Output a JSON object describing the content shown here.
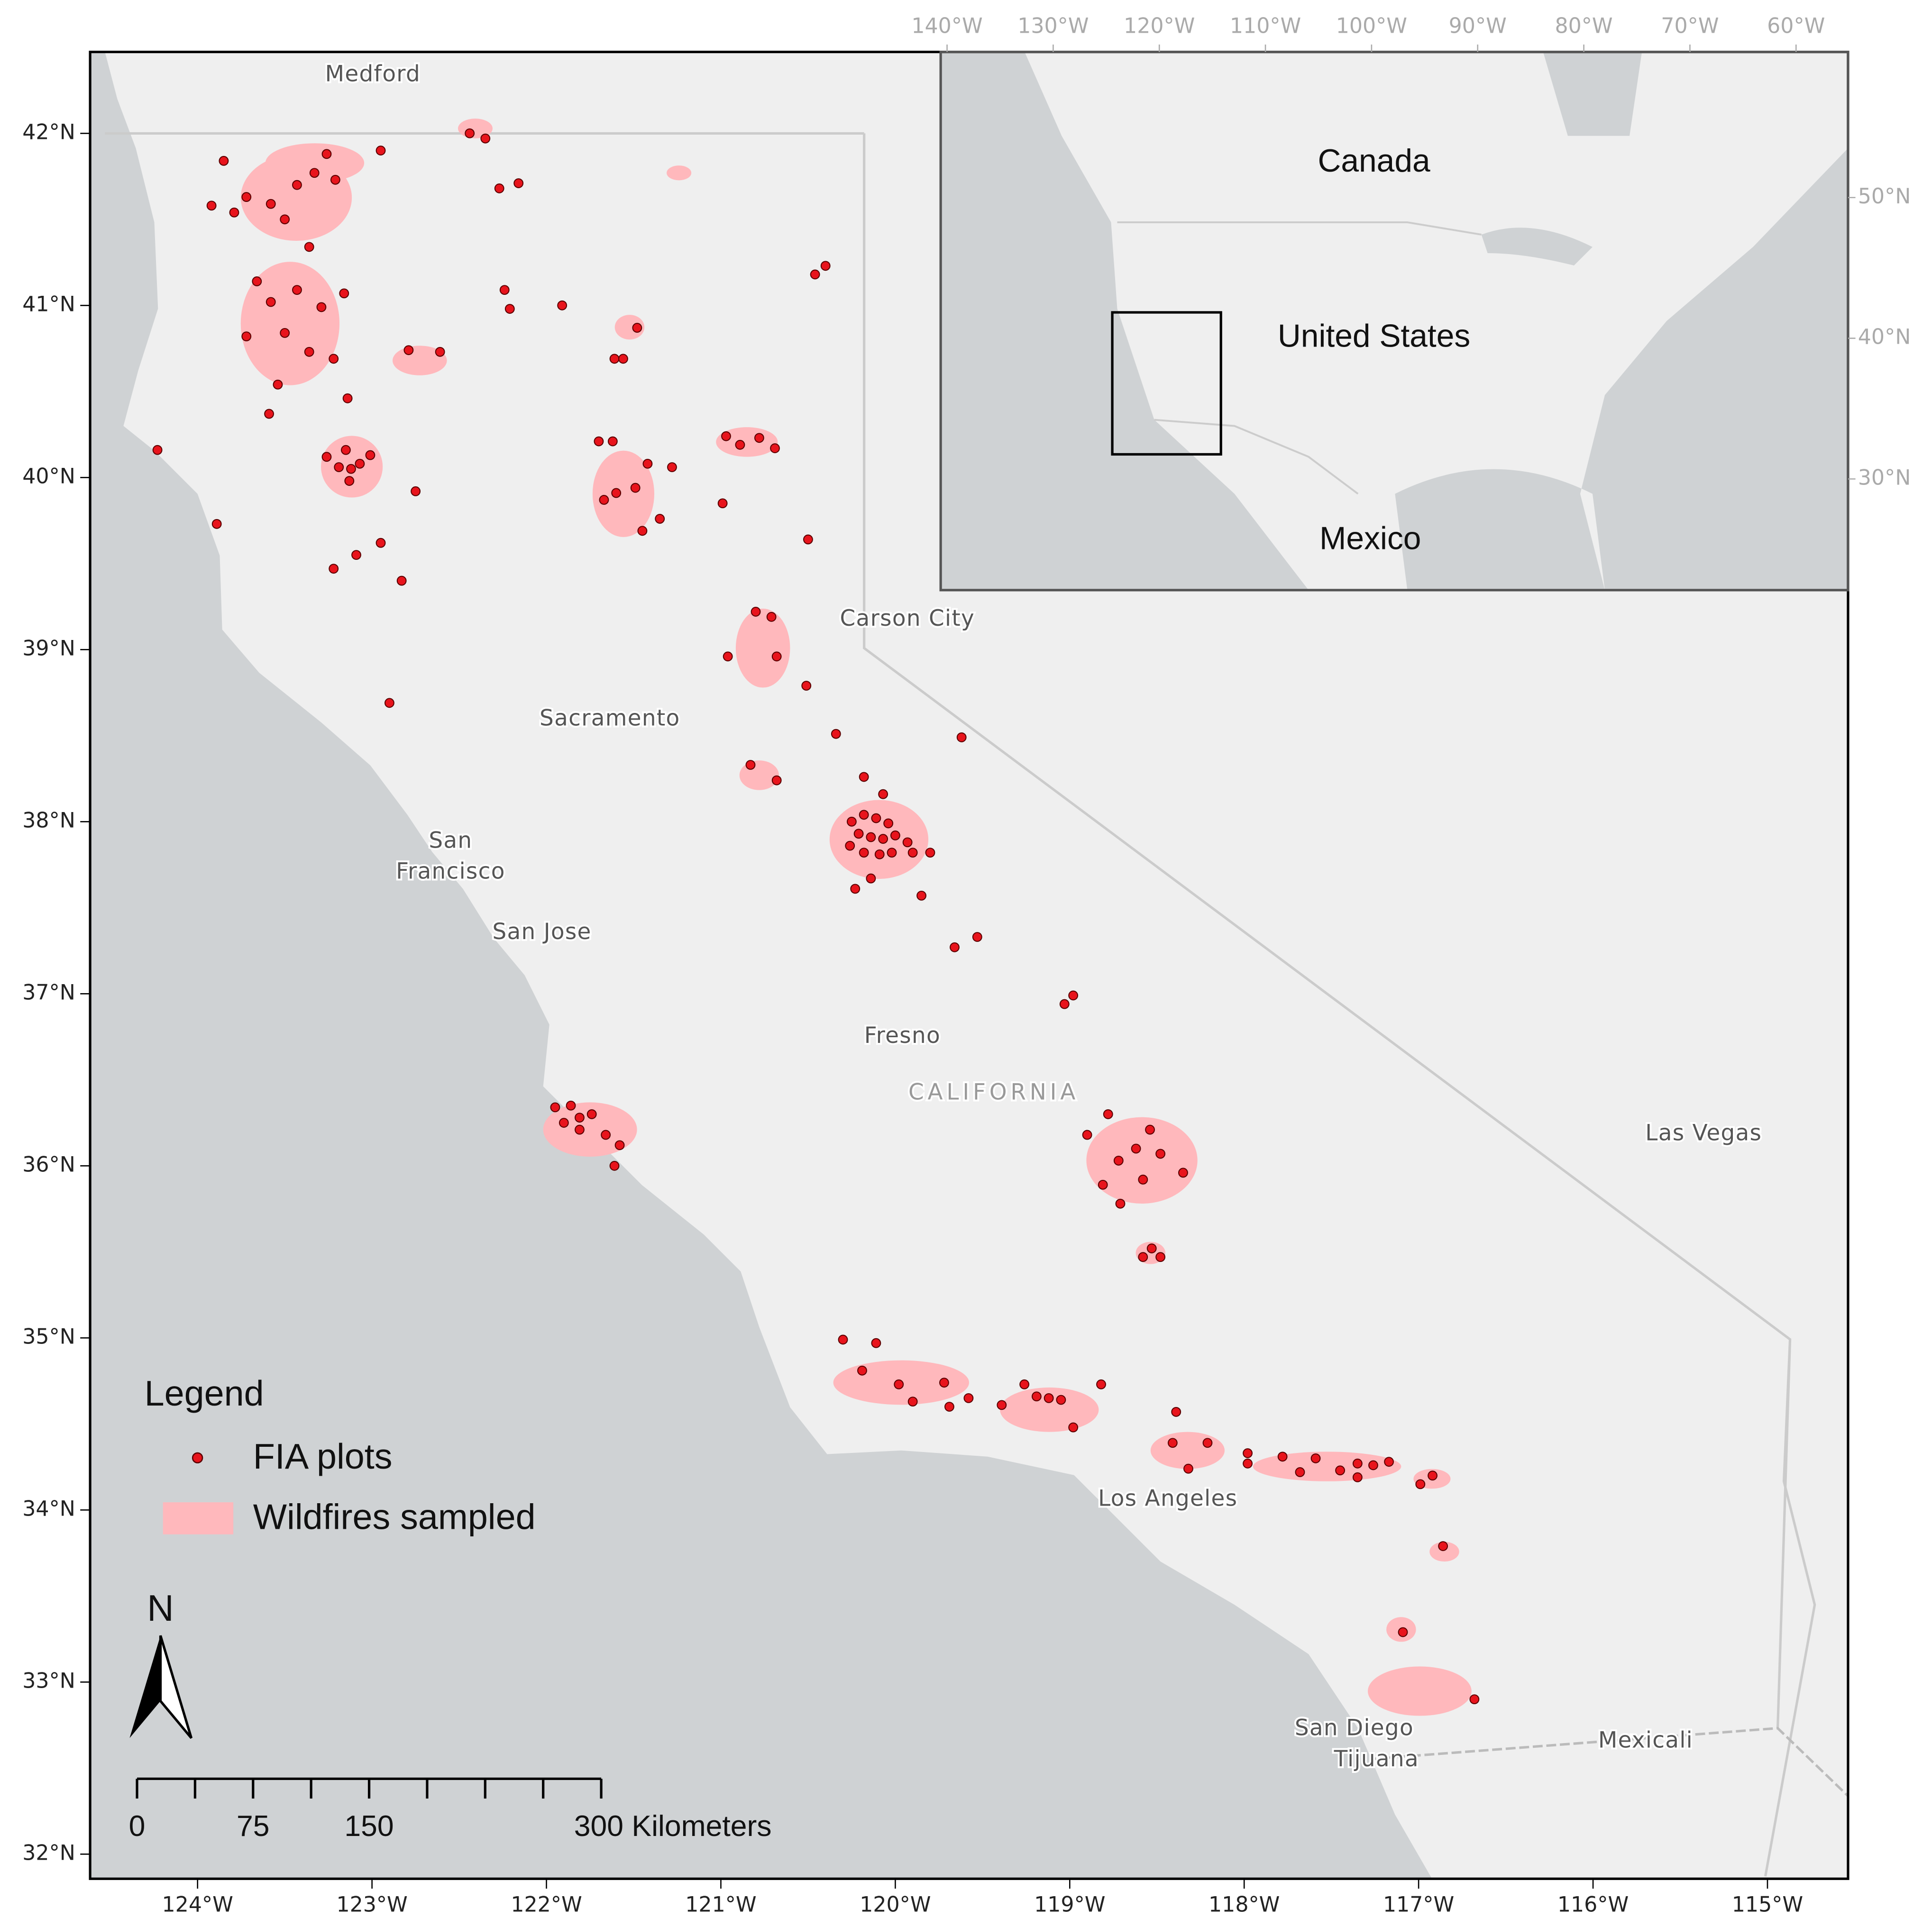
{
  "map": {
    "lon_lim": [
      -124.616,
      -114.538
    ],
    "lat_lim": [
      31.857,
      42.473
    ],
    "lon_ticks": [
      {
        "value": -124,
        "label": "124°W"
      },
      {
        "value": -123,
        "label": "123°W"
      },
      {
        "value": -122,
        "label": "122°W"
      },
      {
        "value": -121,
        "label": "121°W"
      },
      {
        "value": -120,
        "label": "120°W"
      },
      {
        "value": -119,
        "label": "119°W"
      },
      {
        "value": -118,
        "label": "118°W"
      },
      {
        "value": -117,
        "label": "117°W"
      },
      {
        "value": -116,
        "label": "116°W"
      },
      {
        "value": -115,
        "label": "115°W"
      }
    ],
    "lat_ticks": [
      {
        "value": 32,
        "label": "32°N"
      },
      {
        "value": 33,
        "label": "33°N"
      },
      {
        "value": 34,
        "label": "34°N"
      },
      {
        "value": 35,
        "label": "35°N"
      },
      {
        "value": 36,
        "label": "36°N"
      },
      {
        "value": 37,
        "label": "37°N"
      },
      {
        "value": 38,
        "label": "38°N"
      },
      {
        "value": 39,
        "label": "39°N"
      },
      {
        "value": 40,
        "label": "40°N"
      },
      {
        "value": 41,
        "label": "41°N"
      },
      {
        "value": 42,
        "label": "42°N"
      }
    ],
    "places": [
      "Medford",
      "Carson City",
      "Sacramento",
      "San",
      "Francisco",
      "San Jose",
      "Fresno",
      "CALIFORNIA",
      "Las Vegas",
      "Los Angeles",
      "San Diego",
      "Tijuana",
      "Mexicali"
    ],
    "fia_plots": [
      [
        -123.85,
        41.84
      ],
      [
        -123.92,
        41.58
      ],
      [
        -123.79,
        41.54
      ],
      [
        -123.72,
        41.63
      ],
      [
        -123.58,
        41.59
      ],
      [
        -123.5,
        41.5
      ],
      [
        -123.43,
        41.7
      ],
      [
        -123.33,
        41.77
      ],
      [
        -123.26,
        41.88
      ],
      [
        -123.21,
        41.73
      ],
      [
        -123.36,
        41.34
      ],
      [
        -123.66,
        41.14
      ],
      [
        -123.58,
        41.02
      ],
      [
        -123.43,
        41.09
      ],
      [
        -123.72,
        40.82
      ],
      [
        -123.5,
        40.84
      ],
      [
        -123.36,
        40.73
      ],
      [
        -123.22,
        40.69
      ],
      [
        -123.29,
        40.99
      ],
      [
        -123.16,
        41.07
      ],
      [
        -123.54,
        40.54
      ],
      [
        -123.59,
        40.37
      ],
      [
        -123.14,
        40.46
      ],
      [
        -122.95,
        41.9
      ],
      [
        -122.79,
        40.74
      ],
      [
        -122.61,
        40.73
      ],
      [
        -123.26,
        40.12
      ],
      [
        -123.15,
        40.16
      ],
      [
        -123.07,
        40.08
      ],
      [
        -123.01,
        40.13
      ],
      [
        -123.12,
        40.05
      ],
      [
        -123.19,
        40.06
      ],
      [
        -123.13,
        39.98
      ],
      [
        -124.23,
        40.16
      ],
      [
        -123.89,
        39.73
      ],
      [
        -123.22,
        39.47
      ],
      [
        -123.09,
        39.55
      ],
      [
        -122.95,
        39.62
      ],
      [
        -122.75,
        39.92
      ],
      [
        -122.83,
        39.4
      ],
      [
        -122.9,
        38.69
      ],
      [
        -122.44,
        42.0
      ],
      [
        -122.35,
        41.97
      ],
      [
        -122.27,
        41.68
      ],
      [
        -122.16,
        41.71
      ],
      [
        -122.24,
        41.09
      ],
      [
        -122.21,
        40.98
      ],
      [
        -121.91,
        41.0
      ],
      [
        -121.61,
        40.69
      ],
      [
        -121.56,
        40.69
      ],
      [
        -121.48,
        40.87
      ],
      [
        -121.7,
        40.21
      ],
      [
        -121.62,
        40.21
      ],
      [
        -121.67,
        39.87
      ],
      [
        -121.6,
        39.91
      ],
      [
        -121.49,
        39.94
      ],
      [
        -121.42,
        40.08
      ],
      [
        -121.28,
        40.06
      ],
      [
        -121.45,
        39.69
      ],
      [
        -121.35,
        39.76
      ],
      [
        -120.97,
        40.24
      ],
      [
        -120.89,
        40.19
      ],
      [
        -120.78,
        40.23
      ],
      [
        -120.69,
        40.17
      ],
      [
        -120.99,
        39.85
      ],
      [
        -120.5,
        39.64
      ],
      [
        -120.4,
        41.23
      ],
      [
        -120.46,
        41.18
      ],
      [
        -120.8,
        39.22
      ],
      [
        -120.71,
        39.19
      ],
      [
        -120.96,
        38.96
      ],
      [
        -120.68,
        38.96
      ],
      [
        -120.51,
        38.79
      ],
      [
        -120.34,
        38.51
      ],
      [
        -120.83,
        38.33
      ],
      [
        -120.68,
        38.24
      ],
      [
        -119.62,
        38.49
      ],
      [
        -120.25,
        38.0
      ],
      [
        -120.18,
        38.04
      ],
      [
        -120.11,
        38.02
      ],
      [
        -120.04,
        37.99
      ],
      [
        -120.21,
        37.93
      ],
      [
        -120.14,
        37.91
      ],
      [
        -120.07,
        37.9
      ],
      [
        -120.0,
        37.92
      ],
      [
        -119.93,
        37.88
      ],
      [
        -120.26,
        37.86
      ],
      [
        -120.18,
        37.82
      ],
      [
        -120.09,
        37.81
      ],
      [
        -120.02,
        37.82
      ],
      [
        -119.9,
        37.82
      ],
      [
        -120.18,
        38.26
      ],
      [
        -120.07,
        38.16
      ],
      [
        -119.8,
        37.82
      ],
      [
        -120.23,
        37.61
      ],
      [
        -120.14,
        37.67
      ],
      [
        -119.85,
        37.57
      ],
      [
        -119.66,
        37.27
      ],
      [
        -119.53,
        37.33
      ],
      [
        -119.03,
        36.94
      ],
      [
        -118.98,
        36.99
      ],
      [
        -121.95,
        36.34
      ],
      [
        -121.86,
        36.35
      ],
      [
        -121.81,
        36.28
      ],
      [
        -121.74,
        36.3
      ],
      [
        -121.9,
        36.25
      ],
      [
        -121.81,
        36.21
      ],
      [
        -121.66,
        36.18
      ],
      [
        -121.58,
        36.12
      ],
      [
        -121.61,
        36.0
      ],
      [
        -118.78,
        36.3
      ],
      [
        -118.9,
        36.18
      ],
      [
        -118.54,
        36.21
      ],
      [
        -118.62,
        36.1
      ],
      [
        -118.72,
        36.03
      ],
      [
        -118.48,
        36.07
      ],
      [
        -118.35,
        35.96
      ],
      [
        -118.58,
        35.92
      ],
      [
        -118.81,
        35.89
      ],
      [
        -118.71,
        35.78
      ],
      [
        -118.58,
        35.47
      ],
      [
        -118.53,
        35.52
      ],
      [
        -118.48,
        35.47
      ],
      [
        -120.3,
        34.99
      ],
      [
        -120.11,
        34.97
      ],
      [
        -120.19,
        34.81
      ],
      [
        -119.98,
        34.73
      ],
      [
        -119.9,
        34.63
      ],
      [
        -119.72,
        34.74
      ],
      [
        -119.69,
        34.6
      ],
      [
        -119.58,
        34.65
      ],
      [
        -119.39,
        34.61
      ],
      [
        -119.26,
        34.73
      ],
      [
        -119.19,
        34.66
      ],
      [
        -119.12,
        34.65
      ],
      [
        -119.05,
        34.64
      ],
      [
        -118.98,
        34.48
      ],
      [
        -118.82,
        34.73
      ],
      [
        -118.39,
        34.57
      ],
      [
        -118.41,
        34.39
      ],
      [
        -118.32,
        34.24
      ],
      [
        -118.21,
        34.39
      ],
      [
        -117.98,
        34.33
      ],
      [
        -117.98,
        34.27
      ],
      [
        -117.78,
        34.31
      ],
      [
        -117.68,
        34.22
      ],
      [
        -117.59,
        34.3
      ],
      [
        -117.45,
        34.23
      ],
      [
        -117.35,
        34.27
      ],
      [
        -117.35,
        34.19
      ],
      [
        -117.26,
        34.26
      ],
      [
        -117.17,
        34.28
      ],
      [
        -116.99,
        34.15
      ],
      [
        -116.92,
        34.2
      ],
      [
        -116.86,
        33.79
      ],
      [
        -117.09,
        33.29
      ],
      [
        -116.68,
        32.9
      ]
    ]
  },
  "inset": {
    "lon_lim": [
      -140.6,
      -55.1
    ],
    "lat_lim": [
      22.1,
      60.35
    ],
    "lon_ticks": [
      {
        "value": -140,
        "label": "140°W"
      },
      {
        "value": -130,
        "label": "130°W"
      },
      {
        "value": -120,
        "label": "120°W"
      },
      {
        "value": -110,
        "label": "110°W"
      },
      {
        "value": -100,
        "label": "100°W"
      },
      {
        "value": -90,
        "label": "90°W"
      },
      {
        "value": -80,
        "label": "80°W"
      },
      {
        "value": -70,
        "label": "70°W"
      },
      {
        "value": -60,
        "label": "60°W"
      }
    ],
    "lat_ticks": [
      {
        "value": 30,
        "label": "30°N"
      },
      {
        "value": 40,
        "label": "40°N"
      },
      {
        "value": 50,
        "label": "50°N"
      }
    ],
    "labels": [
      "Canada",
      "United States",
      "Mexico"
    ]
  },
  "legend": {
    "title": "Legend",
    "items": [
      "FIA plots",
      "Wildfires sampled"
    ]
  },
  "north_arrow": "N",
  "scale_bar": {
    "range": [
      0,
      300
    ],
    "ticks": [
      0,
      37.5,
      75,
      112.5,
      150,
      187.5,
      225,
      262.5,
      300
    ],
    "labels": [
      0,
      75,
      150,
      {
        "value": 300,
        "label": "300 Kilometers"
      }
    ]
  }
}
